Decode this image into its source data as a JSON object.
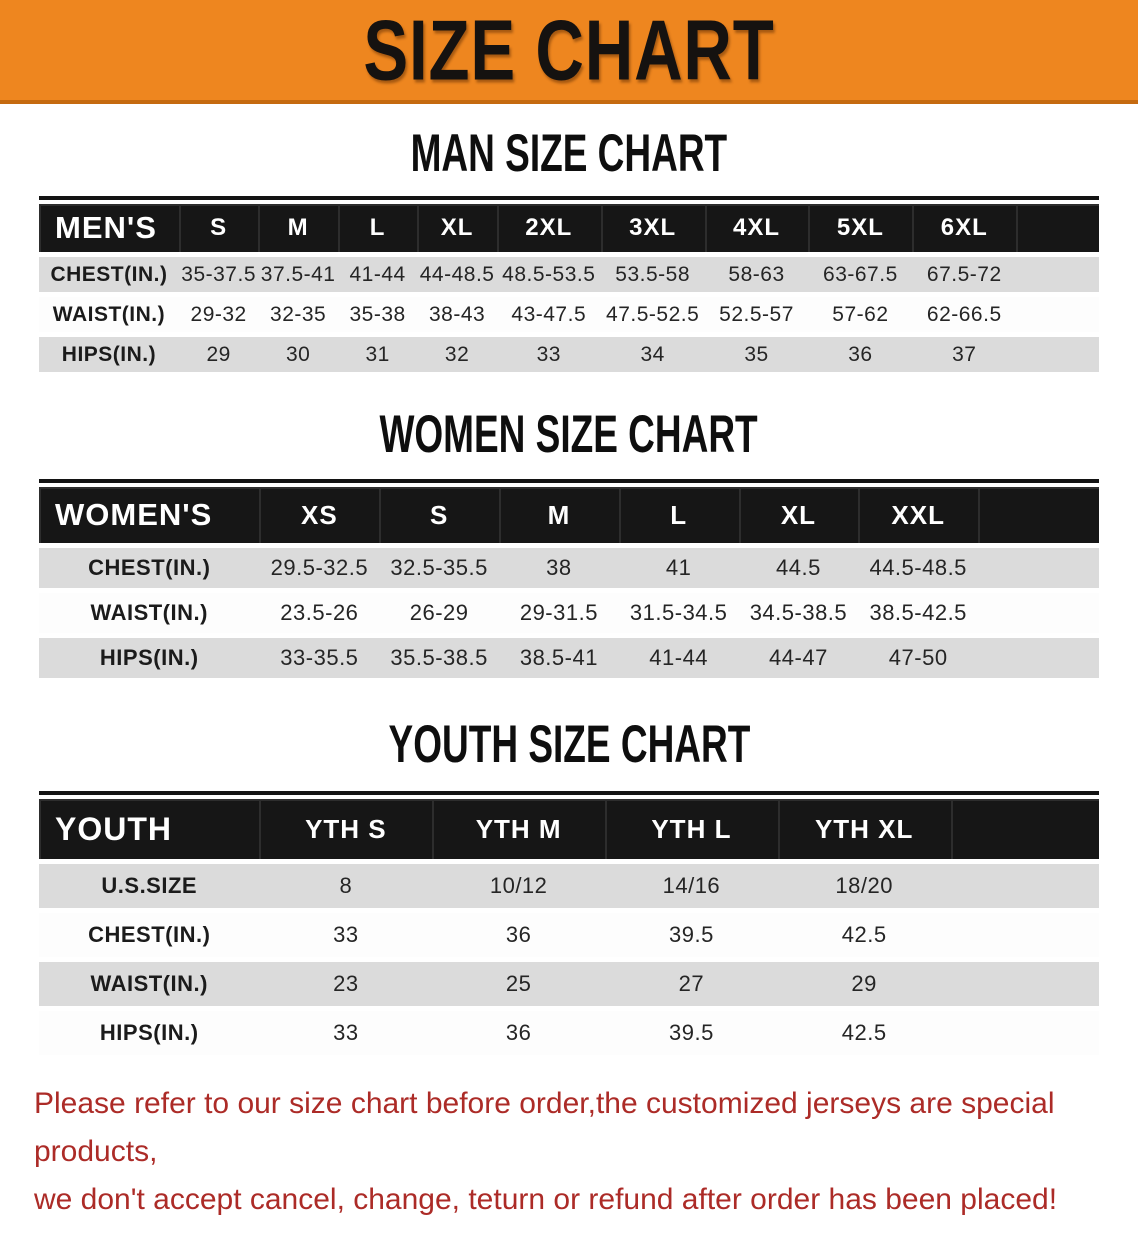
{
  "banner": {
    "title": "SIZE CHART"
  },
  "sections": {
    "men": {
      "heading": "MAN SIZE CHART",
      "table": {
        "header_label": "MEN'S",
        "columns": [
          "S",
          "M",
          "L",
          "XL",
          "2XL",
          "3XL",
          "4XL",
          "5XL",
          "6XL"
        ],
        "rows": [
          {
            "label": "CHEST(IN.)",
            "values": [
              "35-37.5",
              "37.5-41",
              "41-44",
              "44-48.5",
              "48.5-53.5",
              "53.5-58",
              "58-63",
              "63-67.5",
              "67.5-72"
            ]
          },
          {
            "label": "WAIST(IN.)",
            "values": [
              "29-32",
              "32-35",
              "35-38",
              "38-43",
              "43-47.5",
              "47.5-52.5",
              "52.5-57",
              "57-62",
              "62-66.5"
            ]
          },
          {
            "label": "HIPS(IN.)",
            "values": [
              "29",
              "30",
              "31",
              "32",
              "33",
              "34",
              "35",
              "36",
              "37"
            ]
          }
        ]
      }
    },
    "women": {
      "heading": "WOMEN SIZE CHART",
      "table": {
        "header_label": "WOMEN'S",
        "columns": [
          "XS",
          "S",
          "M",
          "L",
          "XL",
          "XXL"
        ],
        "rows": [
          {
            "label": "CHEST(IN.)",
            "values": [
              "29.5-32.5",
              "32.5-35.5",
              "38",
              "41",
              "44.5",
              "44.5-48.5"
            ]
          },
          {
            "label": "WAIST(IN.)",
            "values": [
              "23.5-26",
              "26-29",
              "29-31.5",
              "31.5-34.5",
              "34.5-38.5",
              "38.5-42.5"
            ]
          },
          {
            "label": "HIPS(IN.)",
            "values": [
              "33-35.5",
              "35.5-38.5",
              "38.5-41",
              "41-44",
              "44-47",
              "47-50"
            ]
          }
        ]
      }
    },
    "youth": {
      "heading": "YOUTH SIZE CHART",
      "table": {
        "header_label": "YOUTH",
        "columns": [
          "YTH S",
          "YTH M",
          "YTH L",
          "YTH XL"
        ],
        "rows": [
          {
            "label": "U.S.SIZE",
            "values": [
              "8",
              "10/12",
              "14/16",
              "18/20"
            ]
          },
          {
            "label": "CHEST(IN.)",
            "values": [
              "33",
              "36",
              "39.5",
              "42.5"
            ]
          },
          {
            "label": "WAIST(IN.)",
            "values": [
              "23",
              "25",
              "27",
              "29"
            ]
          },
          {
            "label": "HIPS(IN.)",
            "values": [
              "33",
              "36",
              "39.5",
              "42.5"
            ]
          }
        ]
      }
    }
  },
  "disclaimer": {
    "line1": "Please refer to our size chart before order,the customized jerseys are special products,",
    "line2": "we don't accept cancel, change, teturn or refund after order has been placed!"
  },
  "colors": {
    "banner_orange": "#EE861F",
    "banner_border": "#C56A10",
    "header_black": "#161616",
    "row_gray": "#DBDBDB",
    "disclaimer_red": "#AC2B27"
  }
}
